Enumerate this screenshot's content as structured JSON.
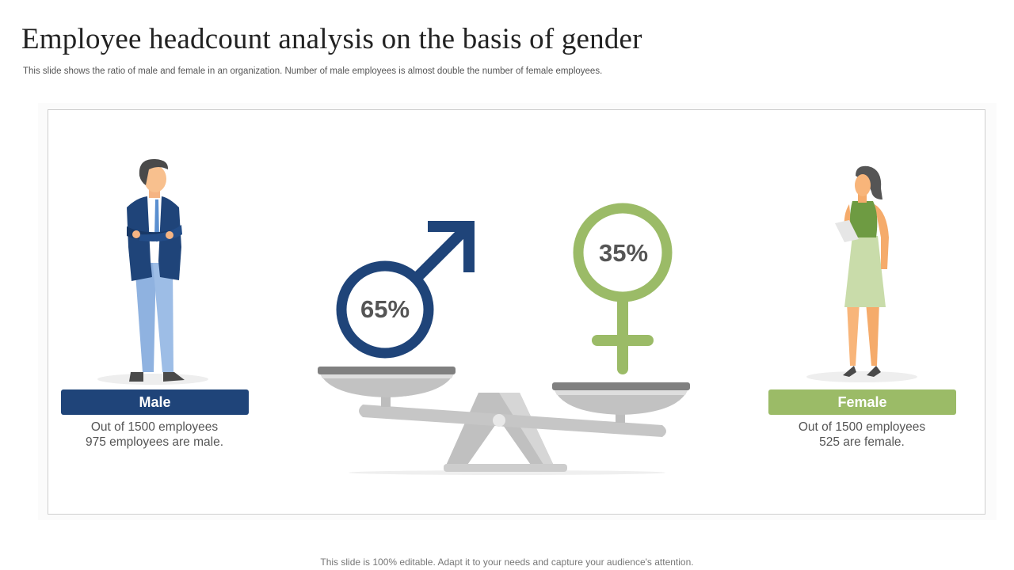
{
  "header": {
    "title": "Employee headcount analysis on the basis of gender",
    "subtitle": "This slide shows the ratio of male and female in an organization. Number of male employees is almost double the number of female employees."
  },
  "male": {
    "label": "Male",
    "percent": "65%",
    "desc_line1": "Out of 1500 employees",
    "desc_line2": "975 employees are male.",
    "color": "#1f4479"
  },
  "female": {
    "label": "Female",
    "percent": "35%",
    "desc_line1": "Out of 1500 employees",
    "desc_line2": "525 are female.",
    "color": "#9bbb67"
  },
  "footer": {
    "note": "This slide is 100% editable. Adapt it to your needs and capture your audience's attention."
  },
  "icons": [
    "male-figure-icon",
    "female-figure-icon",
    "male-symbol-icon",
    "female-symbol-icon",
    "balance-scale-icon"
  ]
}
